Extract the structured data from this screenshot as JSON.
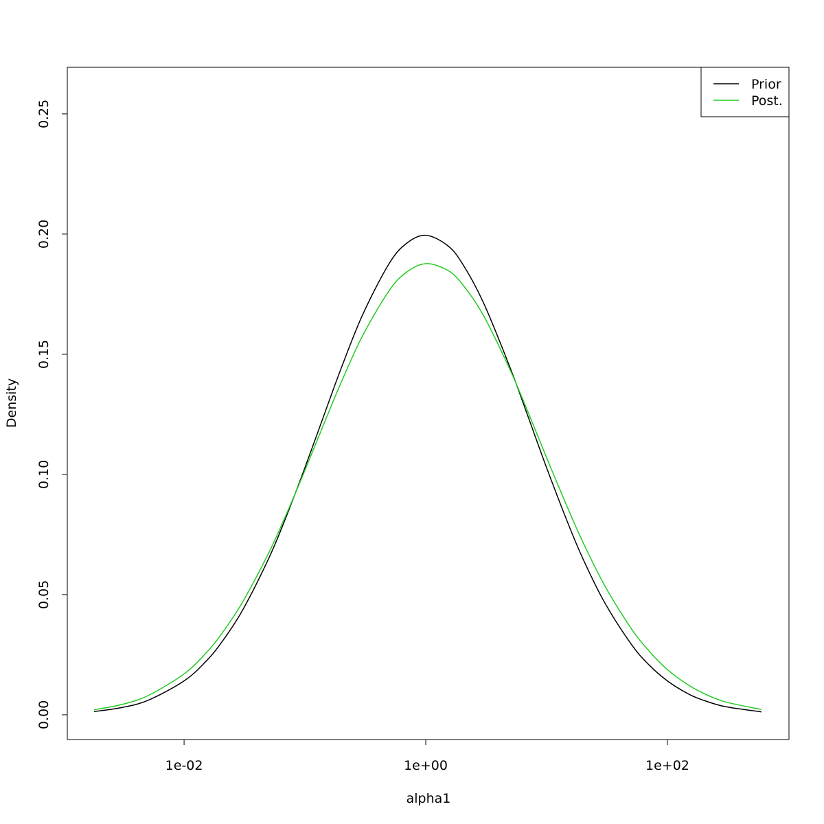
{
  "chart_data": {
    "type": "line",
    "xlabel": "alpha1",
    "ylabel": "Density",
    "xscale": "log",
    "legend": "topright",
    "x": [
      0.0018,
      0.003,
      0.005,
      0.01,
      0.015,
      0.02,
      0.03,
      0.05,
      0.07,
      0.1,
      0.15,
      0.2,
      0.3,
      0.5,
      0.7,
      1,
      1.5,
      2,
      3,
      5,
      7,
      10,
      15,
      20,
      30,
      50,
      70,
      100,
      150,
      200,
      300,
      600
    ],
    "series": [
      {
        "name": "Prior",
        "color": "#000000",
        "values": [
          0.00135,
          0.00294,
          0.00597,
          0.01408,
          0.022,
          0.0295,
          0.0429,
          0.0649,
          0.0824,
          0.1028,
          0.1272,
          0.1443,
          0.1664,
          0.1879,
          0.1963,
          0.1995,
          0.1954,
          0.1879,
          0.1715,
          0.1443,
          0.1243,
          0.1028,
          0.0798,
          0.0649,
          0.047,
          0.0295,
          0.0209,
          0.0141,
          0.0086,
          0.006,
          0.0034,
          0.0012
        ]
      },
      {
        "name": "Post.",
        "color": "#22cc22",
        "values": [
          0.0021,
          0.00419,
          0.00791,
          0.017,
          0.0254,
          0.033,
          0.0463,
          0.0672,
          0.0833,
          0.1017,
          0.1234,
          0.1384,
          0.1577,
          0.1766,
          0.1843,
          0.1877,
          0.1851,
          0.1793,
          0.1662,
          0.1434,
          0.1261,
          0.107,
          0.0859,
          0.0718,
          0.0541,
          0.036,
          0.0267,
          0.0188,
          0.0123,
          0.0089,
          0.0054,
          0.0022
        ]
      }
    ],
    "xlim": [
      0.00108,
      1014
    ],
    "xticks": [
      {
        "value": 0.01,
        "label": "1e-02"
      },
      {
        "value": 1,
        "label": "1e+00"
      },
      {
        "value": 100,
        "label": "1e+02"
      }
    ],
    "ylim": [
      -0.0103,
      0.2694
    ],
    "yticks": [
      {
        "value": 0,
        "label": "0.00"
      },
      0.05,
      {
        "value": 0.1,
        "label": "0.10"
      },
      0.15,
      {
        "value": 0.2,
        "label": "0.20"
      },
      0.25
    ]
  }
}
